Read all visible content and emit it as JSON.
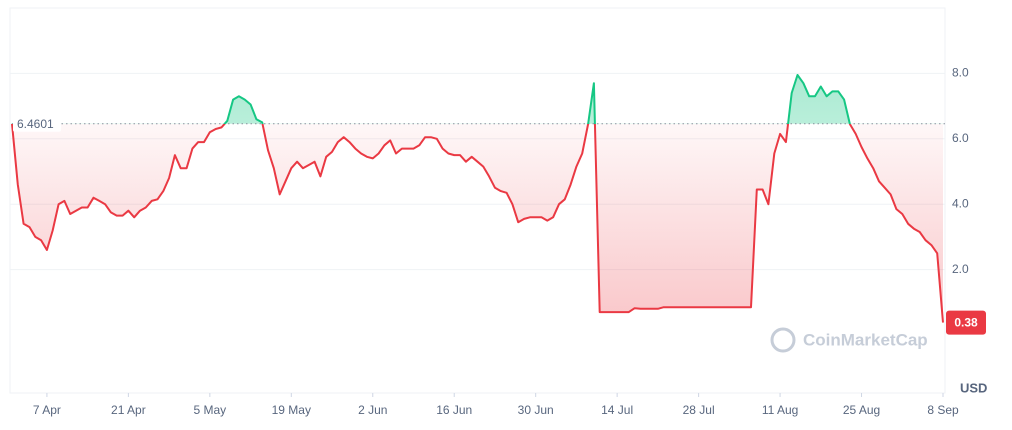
{
  "chart_data": {
    "type": "line",
    "x": [
      0,
      1,
      2,
      3,
      4,
      5,
      6,
      7,
      8,
      9,
      10,
      11,
      12,
      13,
      14,
      15,
      16,
      17,
      18,
      19,
      20,
      21,
      22,
      23,
      24,
      25,
      26,
      27,
      28,
      29,
      30,
      31,
      32,
      33,
      34,
      35,
      36,
      37,
      38,
      39,
      40,
      41,
      42,
      43,
      44,
      45,
      46,
      47,
      48,
      49,
      50,
      51,
      52,
      53,
      54,
      55,
      56,
      57,
      58,
      59,
      60,
      61,
      62,
      63,
      64,
      65,
      66,
      67,
      68,
      69,
      70,
      71,
      72,
      73,
      74,
      75,
      76,
      77,
      78,
      79,
      80,
      81,
      82,
      83,
      84,
      85,
      86,
      87,
      88,
      89,
      90,
      91,
      92,
      93,
      94,
      95,
      96,
      97,
      98,
      99,
      100,
      101,
      102,
      103,
      104,
      105,
      106,
      107,
      108,
      109,
      110,
      111,
      112,
      113,
      114,
      115,
      116,
      117,
      118,
      119,
      120,
      121,
      122,
      123,
      124,
      125,
      126,
      127,
      128,
      129,
      130,
      131,
      132,
      133,
      134,
      135,
      136,
      137,
      138,
      139,
      140,
      141,
      142,
      143,
      144,
      145,
      146,
      147,
      148,
      149,
      150,
      151,
      152,
      153,
      154,
      155,
      156,
      157,
      158,
      159,
      160
    ],
    "values": [
      6.46,
      4.6,
      3.4,
      3.3,
      3.0,
      2.9,
      2.6,
      3.2,
      4.0,
      4.1,
      3.7,
      3.8,
      3.9,
      3.9,
      4.2,
      4.1,
      4.0,
      3.75,
      3.65,
      3.65,
      3.8,
      3.6,
      3.8,
      3.9,
      4.1,
      4.15,
      4.4,
      4.8,
      5.5,
      5.1,
      5.1,
      5.7,
      5.9,
      5.9,
      6.2,
      6.3,
      6.35,
      6.55,
      7.2,
      7.3,
      7.2,
      7.05,
      6.6,
      6.5,
      5.65,
      5.1,
      4.3,
      4.7,
      5.1,
      5.3,
      5.1,
      5.2,
      5.3,
      4.85,
      5.45,
      5.6,
      5.9,
      6.05,
      5.9,
      5.7,
      5.55,
      5.45,
      5.4,
      5.55,
      5.8,
      5.95,
      5.55,
      5.7,
      5.7,
      5.7,
      5.8,
      6.05,
      6.05,
      6.0,
      5.7,
      5.55,
      5.5,
      5.5,
      5.3,
      5.45,
      5.3,
      5.15,
      4.85,
      4.5,
      4.4,
      4.35,
      4.0,
      3.45,
      3.55,
      3.6,
      3.6,
      3.6,
      3.5,
      3.6,
      4.0,
      4.15,
      4.6,
      5.15,
      5.55,
      6.45,
      7.7,
      0.7,
      0.7,
      0.7,
      0.7,
      0.7,
      0.7,
      0.82,
      0.8,
      0.8,
      0.8,
      0.8,
      0.85,
      0.85,
      0.85,
      0.85,
      0.85,
      0.85,
      0.85,
      0.85,
      0.85,
      0.85,
      0.85,
      0.85,
      0.85,
      0.85,
      0.85,
      0.85,
      4.45,
      4.45,
      4.0,
      5.55,
      6.15,
      5.9,
      7.4,
      7.95,
      7.7,
      7.3,
      7.3,
      7.6,
      7.3,
      7.45,
      7.45,
      7.2,
      6.45,
      6.15,
      5.75,
      5.4,
      5.1,
      4.7,
      4.5,
      4.3,
      3.85,
      3.7,
      3.4,
      3.25,
      3.15,
      2.9,
      2.75,
      2.5,
      0.38
    ],
    "color_up": "#16c784",
    "color_down": "#ea3943",
    "baseline": 6.4601,
    "xlim": [
      0,
      160
    ],
    "xticks": [
      {
        "value": 6,
        "label": "7 Apr"
      },
      {
        "value": 20,
        "label": "21 Apr"
      },
      {
        "value": 34,
        "label": "5 May"
      },
      {
        "value": 48,
        "label": "19 May"
      },
      {
        "value": 62,
        "label": "2 Jun"
      },
      {
        "value": 76,
        "label": "16 Jun"
      },
      {
        "value": 90,
        "label": "30 Jun"
      },
      {
        "value": 104,
        "label": "14 Jul"
      },
      {
        "value": 118,
        "label": "28 Jul"
      },
      {
        "value": 132,
        "label": "11 Aug"
      },
      {
        "value": 146,
        "label": "25 Aug"
      },
      {
        "value": 160,
        "label": "8 Sep"
      }
    ],
    "ylim": [
      0,
      10
    ],
    "yticks": [
      {
        "value": 2,
        "label": "2.0"
      },
      {
        "value": 4,
        "label": "4.0"
      },
      {
        "value": 6,
        "label": "6.0"
      },
      {
        "value": 8,
        "label": "8.0"
      }
    ],
    "grid": true,
    "currency": "USD",
    "watermark": "CoinMarketCap"
  }
}
